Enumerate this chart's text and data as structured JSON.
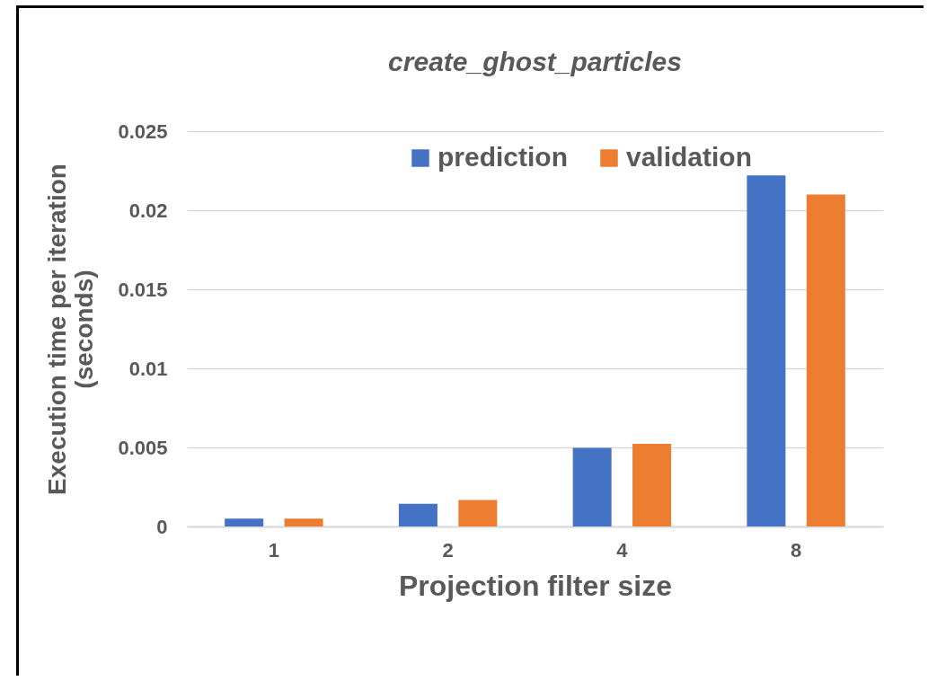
{
  "chart_data": {
    "type": "bar",
    "title": "create_ghost_particles",
    "xlabel": "Projection filter size",
    "ylabel": "Execution time per iteration (seconds)",
    "categories": [
      "1",
      "2",
      "4",
      "8"
    ],
    "series": [
      {
        "name": "prediction",
        "color": "#4472c4",
        "values": [
          0.0005,
          0.00144,
          0.00497,
          0.0222
        ]
      },
      {
        "name": "validation",
        "color": "#ed7d31",
        "values": [
          0.0005,
          0.00167,
          0.00523,
          0.021
        ]
      }
    ],
    "ylim": [
      0,
      0.025
    ],
    "yticks": [
      0,
      0.005,
      0.01,
      0.015,
      0.02,
      0.025
    ],
    "grid": "y",
    "legend": "top"
  }
}
